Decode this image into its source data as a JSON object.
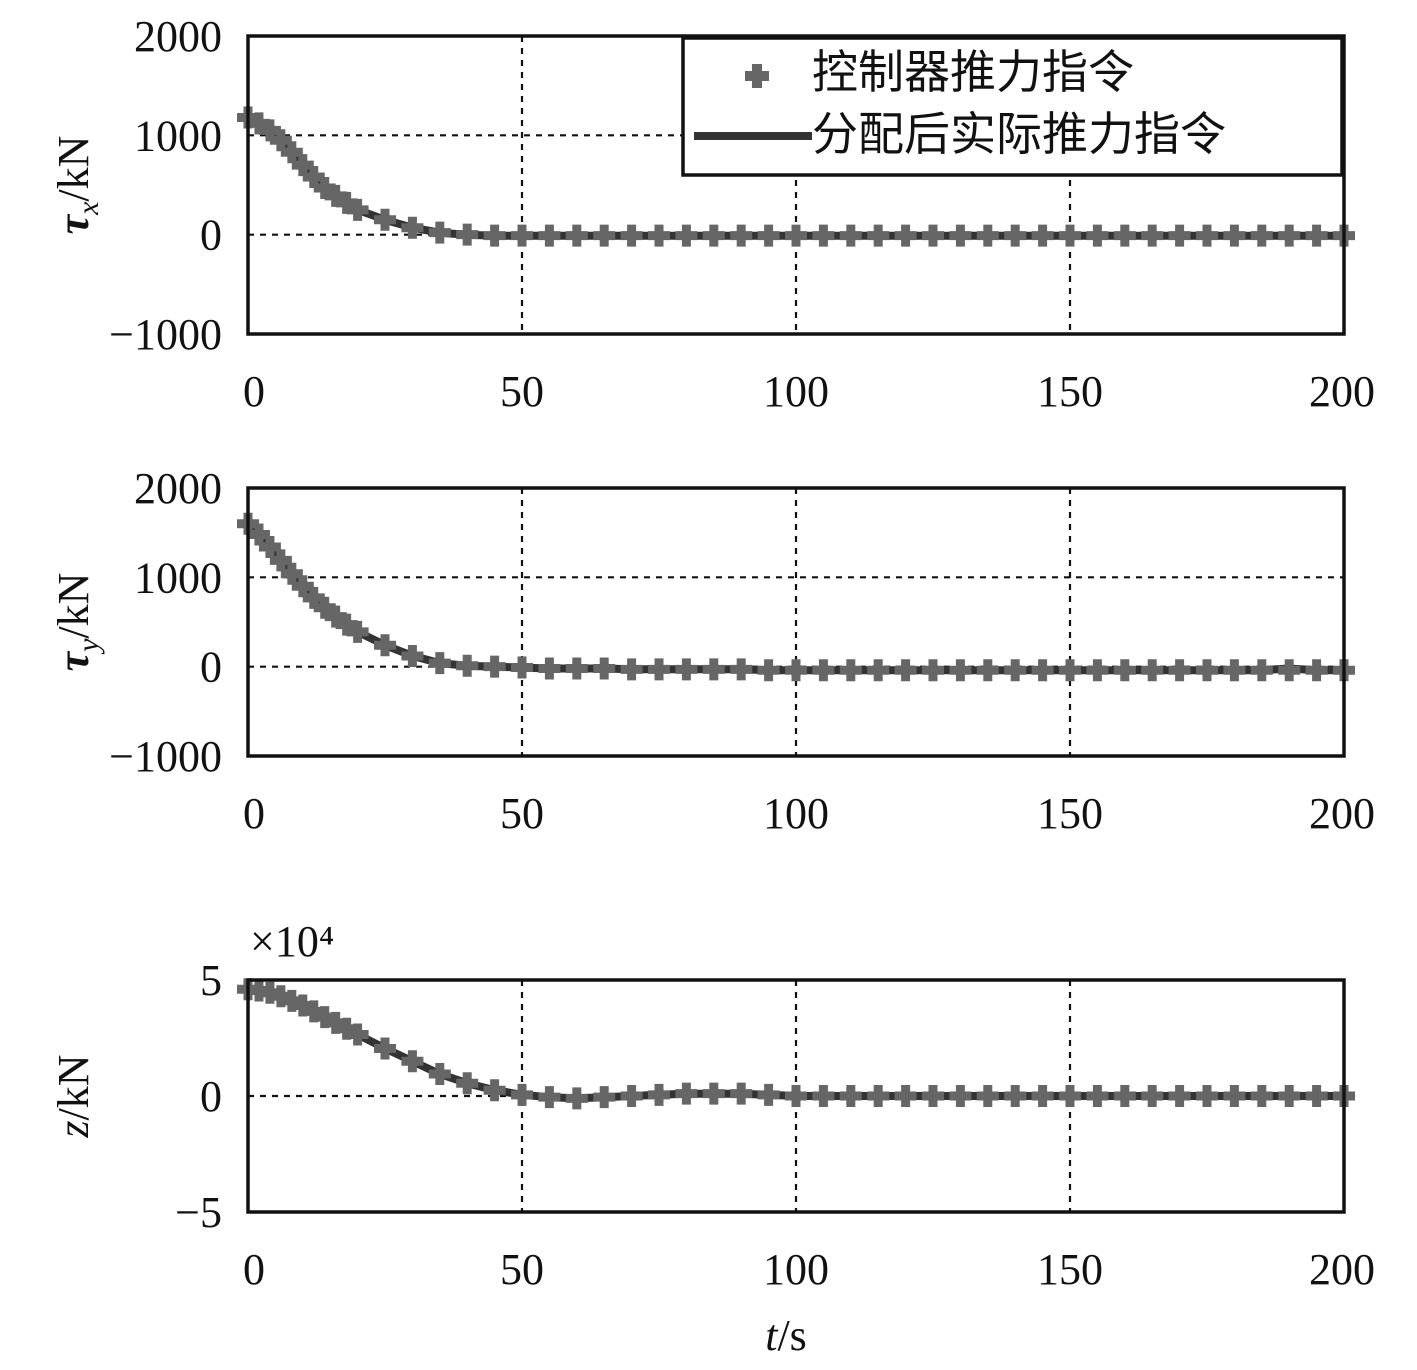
{
  "chart_data": [
    {
      "type": "line",
      "ylabel": "τx/kN",
      "ylabel_main": "τ",
      "ylabel_sub": "x",
      "ylabel_unit": "/kN",
      "ylim": [
        -1000,
        2000
      ],
      "xlim": [
        0,
        200
      ],
      "xticks": [
        0,
        50,
        100,
        150,
        200
      ],
      "xtick_labels": [
        "0",
        "50",
        "100",
        "150",
        "200"
      ],
      "yticks": [
        -1000,
        0,
        1000,
        2000
      ],
      "ytick_labels": [
        "−1000",
        "0",
        "1000",
        "2000"
      ],
      "grid": true,
      "legend": {
        "placement": "top-right",
        "entries": [
          "控制器推力指令",
          "分配后实际推力指令"
        ]
      },
      "series": [
        {
          "name": "控制器推力指令",
          "x": [
            0,
            2,
            4,
            6,
            8,
            10,
            12,
            14,
            16,
            18,
            20,
            25,
            30,
            35,
            40,
            45,
            50,
            55,
            60,
            65,
            70,
            75,
            80,
            85,
            90,
            95,
            100,
            105,
            110,
            115,
            120,
            125,
            130,
            135,
            140,
            145,
            150,
            155,
            160,
            165,
            170,
            175,
            180,
            185,
            190,
            195,
            200
          ],
          "y": [
            1180,
            1120,
            1050,
            950,
            830,
            700,
            580,
            470,
            390,
            320,
            250,
            150,
            70,
            20,
            0,
            -10,
            -10,
            -10,
            -10,
            -10,
            -10,
            -10,
            -10,
            -10,
            -10,
            -10,
            -10,
            -10,
            -10,
            -10,
            -10,
            -10,
            -10,
            -10,
            -10,
            -10,
            -10,
            -10,
            -10,
            -10,
            -10,
            -10,
            -10,
            -10,
            -10,
            -10,
            -10
          ]
        },
        {
          "name": "分配后实际推力指令",
          "x": [
            0,
            2,
            4,
            6,
            8,
            10,
            12,
            14,
            16,
            18,
            20,
            25,
            30,
            35,
            40,
            45,
            50,
            55,
            60,
            65,
            70,
            75,
            80,
            85,
            90,
            95,
            100,
            105,
            110,
            115,
            120,
            125,
            130,
            135,
            140,
            145,
            150,
            155,
            160,
            165,
            170,
            175,
            180,
            185,
            190,
            195,
            200
          ],
          "y": [
            1180,
            1120,
            1050,
            950,
            830,
            700,
            580,
            470,
            390,
            320,
            250,
            150,
            70,
            20,
            0,
            -10,
            -10,
            -10,
            -10,
            -10,
            -10,
            -10,
            -10,
            -10,
            -10,
            -10,
            -10,
            -10,
            -10,
            -10,
            -10,
            -10,
            -10,
            -10,
            -10,
            -10,
            -10,
            -10,
            -10,
            -10,
            -10,
            -10,
            -10,
            -10,
            -10,
            -10,
            -10
          ]
        }
      ]
    },
    {
      "type": "line",
      "ylabel": "τy/kN",
      "ylabel_main": "τ",
      "ylabel_sub": "y",
      "ylabel_unit": "/kN",
      "ylim": [
        -1000,
        2000
      ],
      "xlim": [
        0,
        200
      ],
      "xticks": [
        0,
        50,
        100,
        150,
        200
      ],
      "xtick_labels": [
        "0",
        "50",
        "100",
        "150",
        "200"
      ],
      "yticks": [
        -1000,
        0,
        1000,
        2000
      ],
      "ytick_labels": [
        "−1000",
        "0",
        "1000",
        "2000"
      ],
      "grid": true,
      "series": [
        {
          "name": "控制器推力指令",
          "x": [
            0,
            2,
            4,
            6,
            8,
            10,
            12,
            14,
            16,
            18,
            20,
            25,
            30,
            35,
            40,
            45,
            50,
            55,
            60,
            65,
            70,
            75,
            80,
            85,
            90,
            95,
            100,
            105,
            110,
            115,
            120,
            125,
            130,
            135,
            140,
            145,
            150,
            155,
            160,
            165,
            170,
            175,
            180,
            185,
            190,
            195,
            200
          ],
          "y": [
            1600,
            1480,
            1340,
            1190,
            1040,
            900,
            770,
            660,
            560,
            470,
            390,
            240,
            120,
            40,
            10,
            0,
            -10,
            -20,
            -20,
            -20,
            -30,
            -30,
            -30,
            -30,
            -30,
            -40,
            -40,
            -40,
            -40,
            -40,
            -40,
            -40,
            -40,
            -40,
            -40,
            -40,
            -40,
            -40,
            -40,
            -40,
            -40,
            -40,
            -40,
            -40,
            -40,
            -40,
            -40
          ]
        },
        {
          "name": "分配后实际推力指令",
          "x": [
            0,
            2,
            4,
            6,
            8,
            10,
            12,
            14,
            16,
            18,
            20,
            25,
            30,
            35,
            40,
            45,
            50,
            55,
            60,
            65,
            70,
            75,
            80,
            85,
            90,
            95,
            100,
            105,
            110,
            115,
            120,
            125,
            130,
            135,
            140,
            145,
            150,
            155,
            160,
            165,
            170,
            175,
            180,
            185,
            190,
            195,
            200
          ],
          "y": [
            1600,
            1480,
            1340,
            1190,
            1040,
            900,
            770,
            660,
            560,
            470,
            390,
            240,
            120,
            40,
            10,
            0,
            -10,
            -20,
            -20,
            -20,
            -30,
            -30,
            -30,
            -30,
            -30,
            -40,
            -40,
            -40,
            -40,
            -40,
            -40,
            -40,
            -40,
            -40,
            -40,
            -40,
            -40,
            -40,
            -40,
            -40,
            -40,
            -40,
            -40,
            -40,
            -20,
            -40,
            -40
          ]
        }
      ]
    },
    {
      "type": "line",
      "ylabel": "z/kN",
      "ylabel_main": "z",
      "ylabel_sub": "",
      "ylabel_unit": "/kN",
      "ylim": [
        -5,
        5
      ],
      "y_multiplier": "×10⁴",
      "xlim": [
        0,
        200
      ],
      "xticks": [
        0,
        50,
        100,
        150,
        200
      ],
      "xtick_labels": [
        "0",
        "50",
        "100",
        "150",
        "200"
      ],
      "yticks": [
        -5,
        0,
        5
      ],
      "ytick_labels": [
        "−5",
        "0",
        "5"
      ],
      "grid": true,
      "xlabel": "t/s",
      "xlabel_main": "t",
      "xlabel_unit": "/s",
      "series": [
        {
          "name": "控制器推力指令",
          "x": [
            0,
            2,
            4,
            6,
            8,
            10,
            12,
            14,
            16,
            18,
            20,
            25,
            30,
            35,
            40,
            45,
            50,
            55,
            60,
            65,
            70,
            75,
            80,
            85,
            90,
            95,
            100,
            105,
            110,
            115,
            120,
            125,
            130,
            135,
            140,
            145,
            150,
            155,
            160,
            165,
            170,
            175,
            180,
            185,
            190,
            195,
            200
          ],
          "y": [
            4.6,
            4.55,
            4.45,
            4.3,
            4.1,
            3.9,
            3.65,
            3.4,
            3.15,
            2.9,
            2.65,
            2.05,
            1.5,
            0.95,
            0.55,
            0.25,
            0.05,
            -0.05,
            -0.1,
            -0.05,
            0.0,
            0.05,
            0.1,
            0.1,
            0.1,
            0.05,
            0.0,
            0.0,
            0.0,
            0.0,
            0.0,
            0.0,
            0.0,
            0.0,
            0.0,
            0.0,
            0.0,
            0.0,
            0.0,
            0.0,
            0.0,
            0.0,
            0.0,
            0.0,
            0.0,
            0.0,
            0.0
          ]
        },
        {
          "name": "分配后实际推力指令",
          "x": [
            0,
            2,
            4,
            6,
            8,
            10,
            12,
            14,
            16,
            18,
            20,
            25,
            30,
            35,
            40,
            45,
            50,
            55,
            60,
            65,
            70,
            75,
            80,
            85,
            90,
            95,
            100,
            105,
            110,
            115,
            120,
            125,
            130,
            135,
            140,
            145,
            150,
            155,
            160,
            165,
            170,
            175,
            180,
            185,
            190,
            195,
            200
          ],
          "y": [
            4.6,
            4.55,
            4.45,
            4.3,
            4.1,
            3.9,
            3.65,
            3.4,
            3.15,
            2.9,
            2.65,
            2.05,
            1.5,
            0.95,
            0.55,
            0.25,
            0.05,
            -0.05,
            -0.1,
            -0.05,
            0.0,
            0.05,
            0.1,
            0.1,
            0.1,
            0.05,
            0.0,
            0.0,
            0.0,
            0.0,
            0.0,
            0.0,
            0.0,
            0.0,
            0.0,
            0.0,
            0.0,
            0.0,
            0.0,
            0.0,
            0.0,
            0.0,
            0.0,
            0.0,
            0.0,
            0.0,
            0.0
          ]
        }
      ]
    }
  ]
}
